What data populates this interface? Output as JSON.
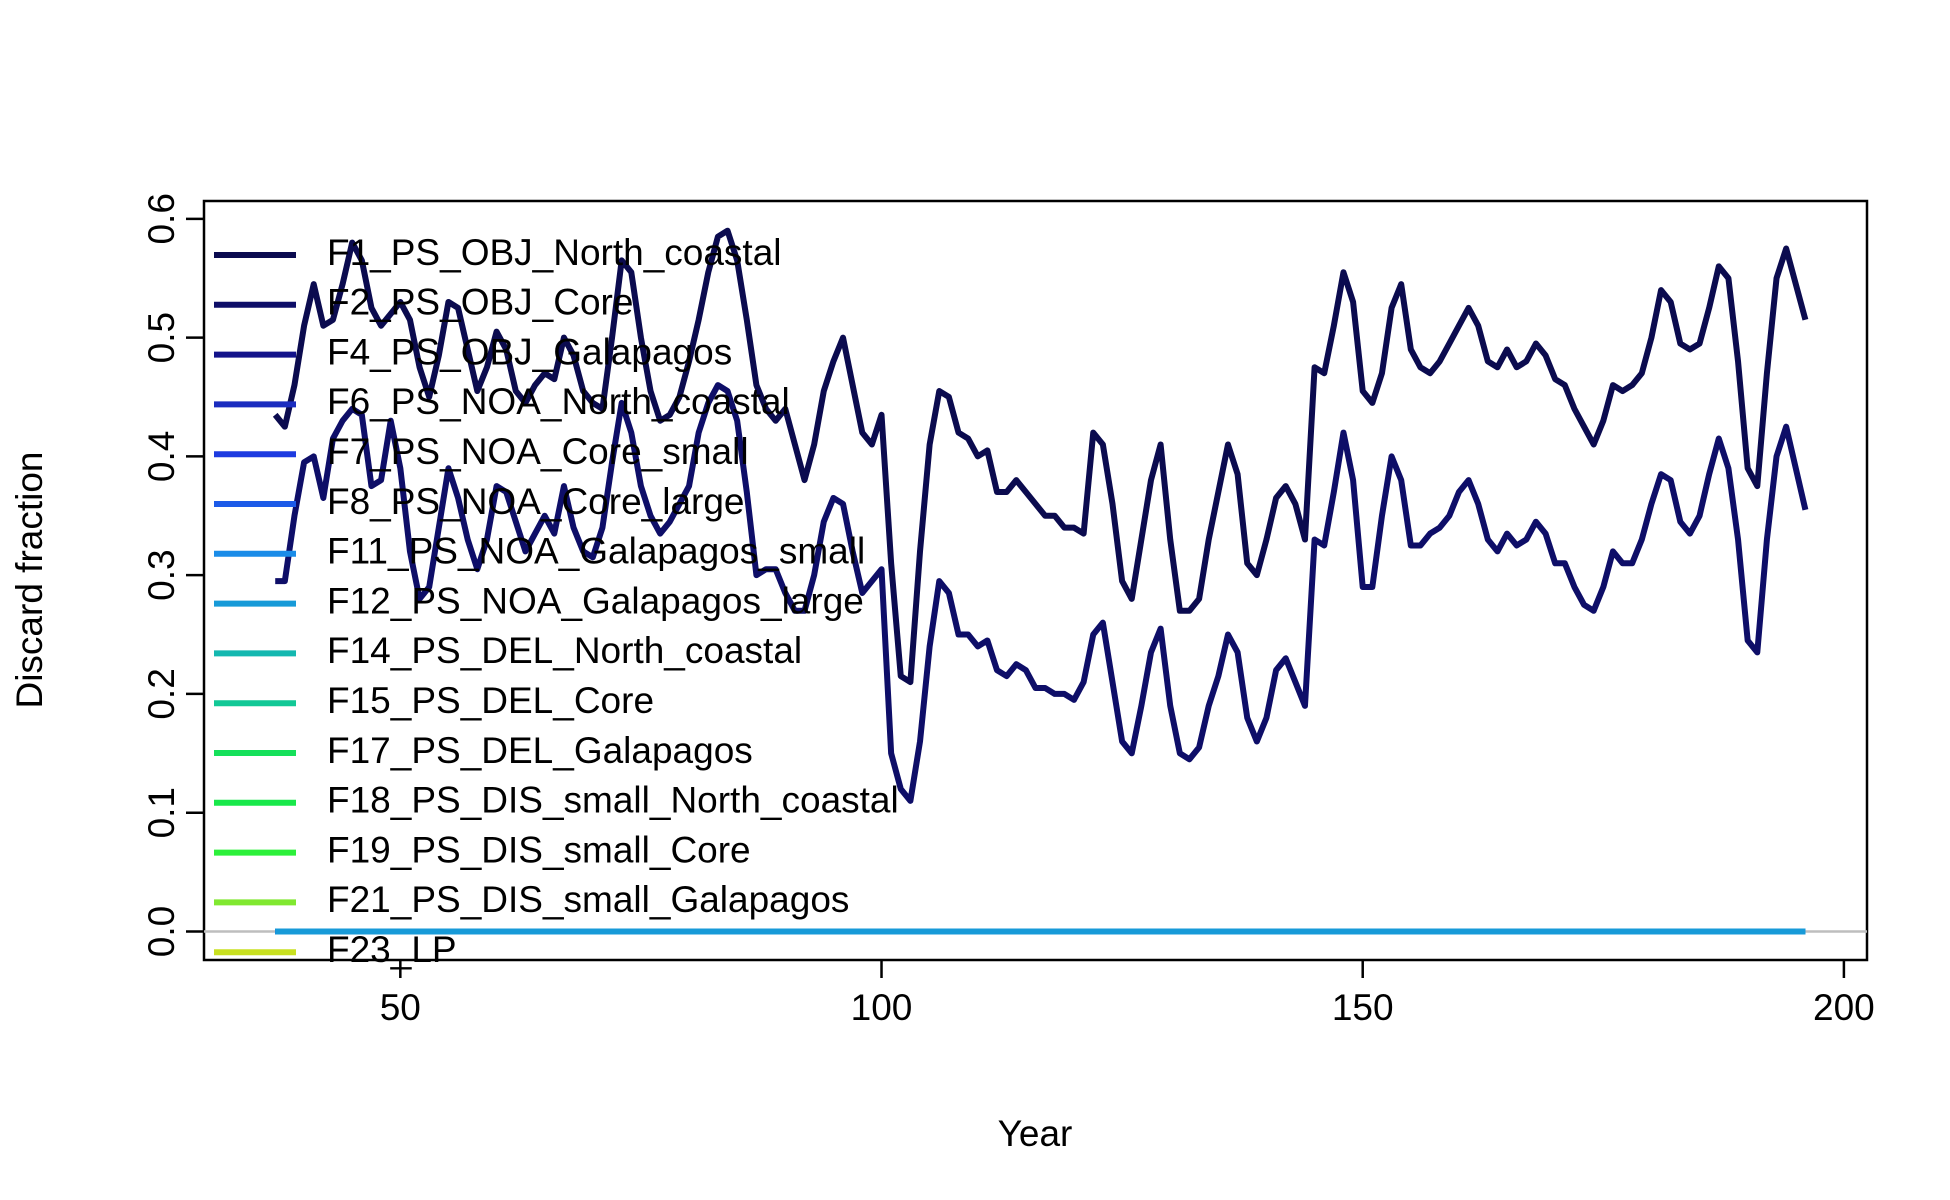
{
  "chart_data": {
    "type": "line",
    "xlabel": "Year",
    "ylabel": "Discard fraction",
    "xlim": [
      29.6,
      202.4
    ],
    "ylim": [
      -0.024,
      0.615
    ],
    "xticks": [
      50,
      100,
      150,
      200
    ],
    "yticks": [
      0.0,
      0.1,
      0.2,
      0.3,
      0.4,
      0.5,
      0.6
    ],
    "hline": 0,
    "legend": "topleft",
    "x": [
      37,
      38,
      39,
      40,
      41,
      42,
      43,
      44,
      45,
      46,
      47,
      48,
      49,
      50,
      51,
      52,
      53,
      54,
      55,
      56,
      57,
      58,
      59,
      60,
      61,
      62,
      63,
      64,
      65,
      66,
      67,
      68,
      69,
      70,
      71,
      72,
      73,
      74,
      75,
      76,
      77,
      78,
      79,
      80,
      81,
      82,
      83,
      84,
      85,
      86,
      87,
      88,
      89,
      90,
      91,
      92,
      93,
      94,
      95,
      96,
      97,
      98,
      99,
      100,
      101,
      102,
      103,
      104,
      105,
      106,
      107,
      108,
      109,
      110,
      111,
      112,
      113,
      114,
      115,
      116,
      117,
      118,
      119,
      120,
      121,
      122,
      123,
      124,
      125,
      126,
      127,
      128,
      129,
      130,
      131,
      132,
      133,
      134,
      135,
      136,
      137,
      138,
      139,
      140,
      141,
      142,
      143,
      144,
      145,
      146,
      147,
      148,
      149,
      150,
      151,
      152,
      153,
      154,
      155,
      156,
      157,
      158,
      159,
      160,
      161,
      162,
      163,
      164,
      165,
      166,
      167,
      168,
      169,
      170,
      171,
      172,
      173,
      174,
      175,
      176,
      177,
      178,
      179,
      180,
      181,
      182,
      183,
      184,
      185,
      186,
      187,
      188,
      189,
      190,
      191,
      192,
      193,
      194,
      195,
      196
    ],
    "series": [
      {
        "name": "F1_PS_OBJ_North_coastal",
        "color": "#0b0b4f",
        "values": [
          0.435,
          0.425,
          0.46,
          0.51,
          0.545,
          0.51,
          0.515,
          0.545,
          0.58,
          0.565,
          0.525,
          0.51,
          0.52,
          0.53,
          0.515,
          0.475,
          0.45,
          0.485,
          0.53,
          0.525,
          0.49,
          0.455,
          0.475,
          0.505,
          0.49,
          0.455,
          0.445,
          0.46,
          0.47,
          0.465,
          0.5,
          0.485,
          0.455,
          0.445,
          0.44,
          0.5,
          0.565,
          0.555,
          0.5,
          0.455,
          0.43,
          0.435,
          0.45,
          0.48,
          0.515,
          0.555,
          0.585,
          0.59,
          0.565,
          0.515,
          0.46,
          0.44,
          0.43,
          0.44,
          0.41,
          0.38,
          0.41,
          0.455,
          0.48,
          0.5,
          0.46,
          0.42,
          0.41,
          0.435,
          0.31,
          0.215,
          0.21,
          0.32,
          0.41,
          0.455,
          0.45,
          0.42,
          0.415,
          0.4,
          0.405,
          0.37,
          0.37,
          0.38,
          0.37,
          0.36,
          0.35,
          0.35,
          0.34,
          0.34,
          0.335,
          0.42,
          0.41,
          0.36,
          0.295,
          0.28,
          0.33,
          0.38,
          0.41,
          0.33,
          0.27,
          0.27,
          0.28,
          0.33,
          0.37,
          0.41,
          0.385,
          0.31,
          0.3,
          0.33,
          0.365,
          0.375,
          0.36,
          0.33,
          0.475,
          0.47,
          0.51,
          0.555,
          0.53,
          0.455,
          0.445,
          0.47,
          0.525,
          0.545,
          0.49,
          0.475,
          0.47,
          0.48,
          0.495,
          0.51,
          0.525,
          0.51,
          0.48,
          0.475,
          0.49,
          0.475,
          0.48,
          0.495,
          0.485,
          0.465,
          0.46,
          0.44,
          0.425,
          0.41,
          0.43,
          0.46,
          0.455,
          0.46,
          0.47,
          0.5,
          0.54,
          0.53,
          0.495,
          0.49,
          0.495,
          0.525,
          0.56,
          0.55,
          0.48,
          0.39,
          0.375,
          0.47,
          0.55,
          0.575,
          0.545,
          0.515
        ]
      },
      {
        "name": "F2_PS_OBJ_Core",
        "color": "#0e0e68",
        "values": [
          0.295,
          0.295,
          0.35,
          0.395,
          0.4,
          0.365,
          0.415,
          0.43,
          0.44,
          0.435,
          0.375,
          0.38,
          0.43,
          0.39,
          0.32,
          0.28,
          0.29,
          0.34,
          0.39,
          0.365,
          0.33,
          0.305,
          0.33,
          0.375,
          0.37,
          0.345,
          0.32,
          0.335,
          0.35,
          0.335,
          0.375,
          0.34,
          0.32,
          0.315,
          0.34,
          0.395,
          0.445,
          0.42,
          0.375,
          0.35,
          0.335,
          0.345,
          0.36,
          0.375,
          0.42,
          0.445,
          0.46,
          0.455,
          0.43,
          0.37,
          0.3,
          0.305,
          0.305,
          0.285,
          0.27,
          0.27,
          0.3,
          0.345,
          0.365,
          0.36,
          0.32,
          0.285,
          0.295,
          0.305,
          0.15,
          0.12,
          0.11,
          0.16,
          0.24,
          0.295,
          0.285,
          0.25,
          0.25,
          0.24,
          0.245,
          0.22,
          0.215,
          0.225,
          0.22,
          0.205,
          0.205,
          0.2,
          0.2,
          0.195,
          0.21,
          0.25,
          0.26,
          0.21,
          0.16,
          0.15,
          0.19,
          0.235,
          0.255,
          0.19,
          0.15,
          0.145,
          0.155,
          0.19,
          0.215,
          0.25,
          0.235,
          0.18,
          0.16,
          0.18,
          0.22,
          0.23,
          0.21,
          0.19,
          0.33,
          0.325,
          0.37,
          0.42,
          0.38,
          0.29,
          0.29,
          0.35,
          0.4,
          0.38,
          0.325,
          0.325,
          0.335,
          0.34,
          0.35,
          0.37,
          0.38,
          0.36,
          0.33,
          0.32,
          0.335,
          0.325,
          0.33,
          0.345,
          0.335,
          0.31,
          0.31,
          0.29,
          0.275,
          0.27,
          0.29,
          0.32,
          0.31,
          0.31,
          0.33,
          0.36,
          0.385,
          0.38,
          0.345,
          0.335,
          0.35,
          0.385,
          0.415,
          0.39,
          0.33,
          0.245,
          0.235,
          0.33,
          0.4,
          0.425,
          0.39,
          0.355
        ]
      },
      {
        "name": "F4_PS_OBJ_Galapagos",
        "color": "#13138a",
        "x": [
          37,
          196
        ],
        "values": [
          0,
          0
        ]
      },
      {
        "name": "F6_PS_NOA_North_coastal",
        "color": "#1a2cbf",
        "x": [
          37,
          196
        ],
        "values": [
          0,
          0
        ]
      },
      {
        "name": "F7_PS_NOA_Core_small",
        "color": "#1d3be0",
        "x": [
          37,
          196
        ],
        "values": [
          0,
          0
        ]
      },
      {
        "name": "F8_PS_NOA_Core_large",
        "color": "#1c5ae8",
        "x": [
          37,
          196
        ],
        "values": [
          0,
          0
        ]
      },
      {
        "name": "F11_PS_NOA_Galapagos_small",
        "color": "#1a8ce8",
        "x": [
          37,
          196
        ],
        "values": [
          0,
          0
        ]
      },
      {
        "name": "F12_PS_NOA_Galapagos_large",
        "color": "#179ad8",
        "x": [
          37,
          196
        ],
        "values": [
          0,
          0
        ]
      },
      {
        "name": "F14_PS_DEL_North_coastal",
        "color": "#14b8b0"
      },
      {
        "name": "F15_PS_DEL_Core",
        "color": "#12c896"
      },
      {
        "name": "F17_PS_DEL_Galapagos",
        "color": "#15e05a"
      },
      {
        "name": "F18_PS_DIS_small_North_coastal",
        "color": "#18e84a"
      },
      {
        "name": "F19_PS_DIS_small_Core",
        "color": "#2cf03a"
      },
      {
        "name": "F21_PS_DIS_small_Galapagos",
        "color": "#80e830"
      },
      {
        "name": "F23_LP",
        "color": "#c8e020"
      }
    ]
  }
}
